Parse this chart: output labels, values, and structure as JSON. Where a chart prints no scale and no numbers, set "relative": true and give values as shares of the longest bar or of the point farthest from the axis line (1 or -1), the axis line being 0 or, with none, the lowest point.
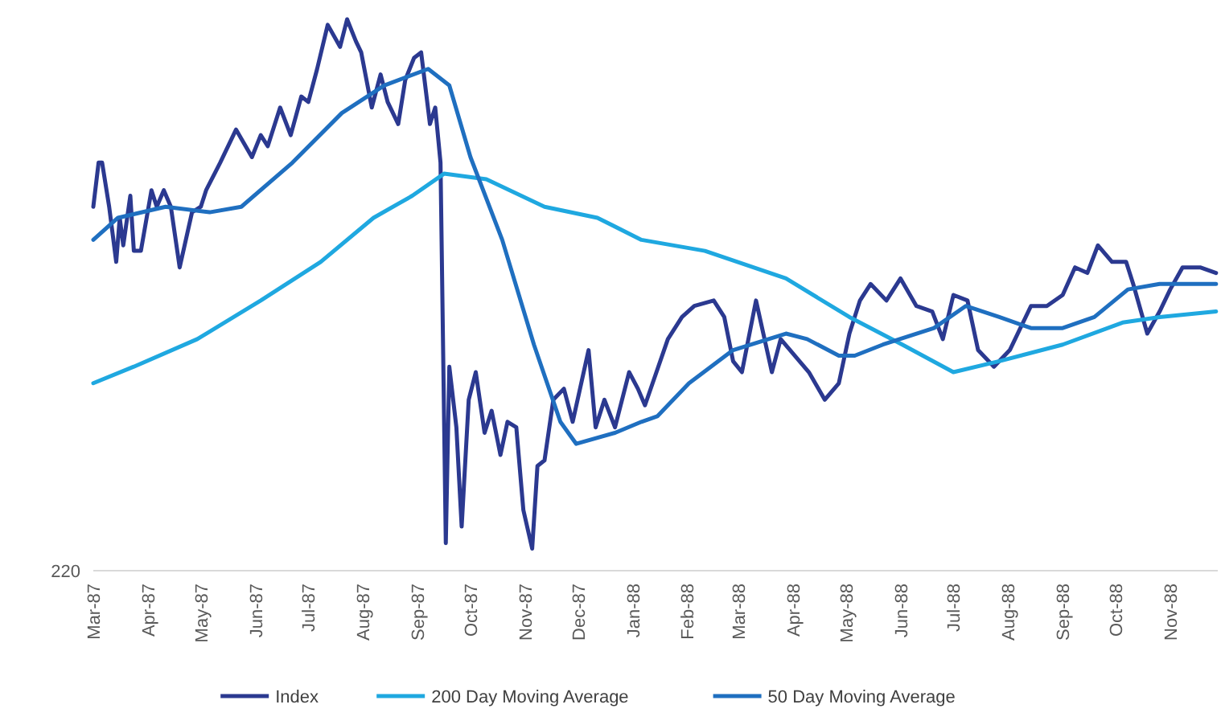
{
  "chart_data": {
    "type": "line",
    "relative": true,
    "grid": false,
    "legend": "bottom",
    "line_style": "solid",
    "tick_labels": "x",
    "annotations": [
      "220"
    ],
    "xlim": [
      "1987-03-01",
      "1988-11-28"
    ],
    "xticks": [
      {
        "value": "1987-03-01",
        "label": "Mar-87"
      },
      {
        "value": "1987-04-01",
        "label": "Apr-87"
      },
      {
        "value": "1987-05-01",
        "label": "May-87"
      },
      {
        "value": "1987-06-01",
        "label": "Jun-87"
      },
      {
        "value": "1987-07-01",
        "label": "Jul-87"
      },
      {
        "value": "1987-08-01",
        "label": "Aug-87"
      },
      {
        "value": "1987-09-01",
        "label": "Sep-87"
      },
      {
        "value": "1987-10-01",
        "label": "Oct-87"
      },
      {
        "value": "1987-11-01",
        "label": "Nov-87"
      },
      {
        "value": "1987-12-01",
        "label": "Dec-87"
      },
      {
        "value": "1988-01-01",
        "label": "Jan-88"
      },
      {
        "value": "1988-02-01",
        "label": "Feb-88"
      },
      {
        "value": "1988-03-01",
        "label": "Mar-88"
      },
      {
        "value": "1988-04-01",
        "label": "Apr-88"
      },
      {
        "value": "1988-05-01",
        "label": "May-88"
      },
      {
        "value": "1988-06-01",
        "label": "Jun-88"
      },
      {
        "value": "1988-07-01",
        "label": "Jul-88"
      },
      {
        "value": "1988-08-01",
        "label": "Aug-88"
      },
      {
        "value": "1988-09-01",
        "label": "Sep-88"
      },
      {
        "value": "1988-10-01",
        "label": "Oct-88"
      },
      {
        "value": "1988-11-01",
        "label": "Nov-88"
      }
    ],
    "series": [
      {
        "name": "Index",
        "color": "#2b3990",
        "x": [
          "1987-03-01",
          "1987-03-04",
          "1987-03-06",
          "1987-03-10",
          "1987-03-14",
          "1987-03-16",
          "1987-03-18",
          "1987-03-22",
          "1987-03-24",
          "1987-03-28",
          "1987-04-03",
          "1987-04-06",
          "1987-04-10",
          "1987-04-14",
          "1987-04-19",
          "1987-04-26",
          "1987-05-01",
          "1987-05-04",
          "1987-05-12",
          "1987-05-21",
          "1987-05-30",
          "1987-06-04",
          "1987-06-08",
          "1987-06-15",
          "1987-06-21",
          "1987-06-27",
          "1987-07-01",
          "1987-07-06",
          "1987-07-12",
          "1987-07-19",
          "1987-07-23",
          "1987-07-28",
          "1987-07-31",
          "1987-08-06",
          "1987-08-11",
          "1987-08-15",
          "1987-08-21",
          "1987-08-25",
          "1987-08-30",
          "1987-09-03",
          "1987-09-08",
          "1987-09-11",
          "1987-09-14",
          "1987-09-17",
          "1987-09-19",
          "1987-09-23",
          "1987-09-26",
          "1987-09-30",
          "1987-10-04",
          "1987-10-09",
          "1987-10-13",
          "1987-10-18",
          "1987-10-22",
          "1987-10-27",
          "1987-10-31",
          "1987-11-05",
          "1987-11-08",
          "1987-11-12",
          "1987-11-17",
          "1987-11-23",
          "1987-11-28",
          "1987-12-07",
          "1987-12-11",
          "1987-12-16",
          "1987-12-22",
          "1987-12-30",
          "1988-01-04",
          "1988-01-08",
          "1988-01-21",
          "1988-01-29",
          "1988-02-05",
          "1988-02-16",
          "1988-02-22",
          "1988-02-27",
          "1988-03-03",
          "1988-03-11",
          "1988-03-20",
          "1988-03-25",
          "1988-04-10",
          "1988-04-19",
          "1988-04-27",
          "1988-05-03",
          "1988-05-09",
          "1988-05-15",
          "1988-05-24",
          "1988-06-01",
          "1988-06-10",
          "1988-06-19",
          "1988-06-25",
          "1988-07-01",
          "1988-07-09",
          "1988-07-15",
          "1988-07-24",
          "1988-08-02",
          "1988-08-14",
          "1988-08-23",
          "1988-09-01",
          "1988-09-08",
          "1988-09-15",
          "1988-09-21",
          "1988-09-29",
          "1988-10-07",
          "1988-10-11",
          "1988-10-19",
          "1988-10-26",
          "1988-11-01",
          "1988-11-08",
          "1988-11-18",
          "1988-11-27"
        ],
        "values": [
          0.66,
          0.74,
          0.74,
          0.66,
          0.56,
          0.64,
          0.59,
          0.68,
          0.58,
          0.58,
          0.69,
          0.66,
          0.69,
          0.66,
          0.55,
          0.65,
          0.66,
          0.69,
          0.74,
          0.8,
          0.75,
          0.79,
          0.77,
          0.84,
          0.79,
          0.86,
          0.85,
          0.91,
          0.99,
          0.95,
          1.0,
          0.96,
          0.94,
          0.84,
          0.9,
          0.85,
          0.81,
          0.89,
          0.93,
          0.94,
          0.81,
          0.84,
          0.74,
          0.05,
          0.37,
          0.26,
          0.08,
          0.31,
          0.36,
          0.25,
          0.29,
          0.21,
          0.27,
          0.26,
          0.11,
          0.04,
          0.19,
          0.2,
          0.31,
          0.33,
          0.27,
          0.4,
          0.26,
          0.31,
          0.26,
          0.36,
          0.33,
          0.3,
          0.42,
          0.46,
          0.48,
          0.49,
          0.46,
          0.38,
          0.36,
          0.49,
          0.36,
          0.42,
          0.36,
          0.31,
          0.34,
          0.43,
          0.49,
          0.52,
          0.49,
          0.53,
          0.48,
          0.47,
          0.42,
          0.5,
          0.49,
          0.4,
          0.37,
          0.4,
          0.48,
          0.48,
          0.5,
          0.55,
          0.54,
          0.59,
          0.56,
          0.56,
          0.52,
          0.43,
          0.47,
          0.51,
          0.55,
          0.55,
          0.54
        ]
      },
      {
        "name": "200 Day Moving Average",
        "color": "#1fa8e0",
        "x": [
          "1987-03-01",
          "1987-03-24",
          "1987-04-29",
          "1987-06-04",
          "1987-07-08",
          "1987-08-07",
          "1987-08-29",
          "1987-09-16",
          "1987-10-10",
          "1987-11-12",
          "1987-12-12",
          "1988-01-06",
          "1988-02-11",
          "1988-03-28",
          "1988-05-03",
          "1988-06-02",
          "1988-07-01",
          "1988-07-27",
          "1988-09-01",
          "1988-10-05",
          "1988-10-26",
          "1988-11-27"
        ],
        "values": [
          0.34,
          0.37,
          0.42,
          0.49,
          0.56,
          0.64,
          0.68,
          0.72,
          0.71,
          0.66,
          0.64,
          0.6,
          0.58,
          0.53,
          0.46,
          0.41,
          0.36,
          0.38,
          0.41,
          0.45,
          0.46,
          0.47
        ]
      },
      {
        "name": "50 Day Moving Average",
        "color": "#1f6fc0",
        "x": [
          "1987-03-01",
          "1987-03-15",
          "1987-04-11",
          "1987-05-06",
          "1987-05-24",
          "1987-06-22",
          "1987-07-20",
          "1987-08-13",
          "1987-09-07",
          "1987-09-19",
          "1987-10-01",
          "1987-10-19",
          "1987-11-06",
          "1987-11-21",
          "1987-11-30",
          "1987-12-22",
          "1988-01-06",
          "1988-01-15",
          "1988-02-02",
          "1988-02-27",
          "1988-03-28",
          "1988-04-09",
          "1988-04-27",
          "1988-05-06",
          "1988-05-22",
          "1988-06-20",
          "1988-07-08",
          "1988-07-27",
          "1988-08-14",
          "1988-09-01",
          "1988-09-19",
          "1988-10-08",
          "1988-10-26",
          "1988-11-27"
        ],
        "values": [
          0.6,
          0.64,
          0.66,
          0.65,
          0.66,
          0.74,
          0.83,
          0.88,
          0.91,
          0.88,
          0.75,
          0.6,
          0.41,
          0.27,
          0.23,
          0.25,
          0.27,
          0.28,
          0.34,
          0.4,
          0.43,
          0.42,
          0.39,
          0.39,
          0.41,
          0.44,
          0.48,
          0.46,
          0.44,
          0.44,
          0.46,
          0.51,
          0.52,
          0.52
        ]
      }
    ]
  }
}
